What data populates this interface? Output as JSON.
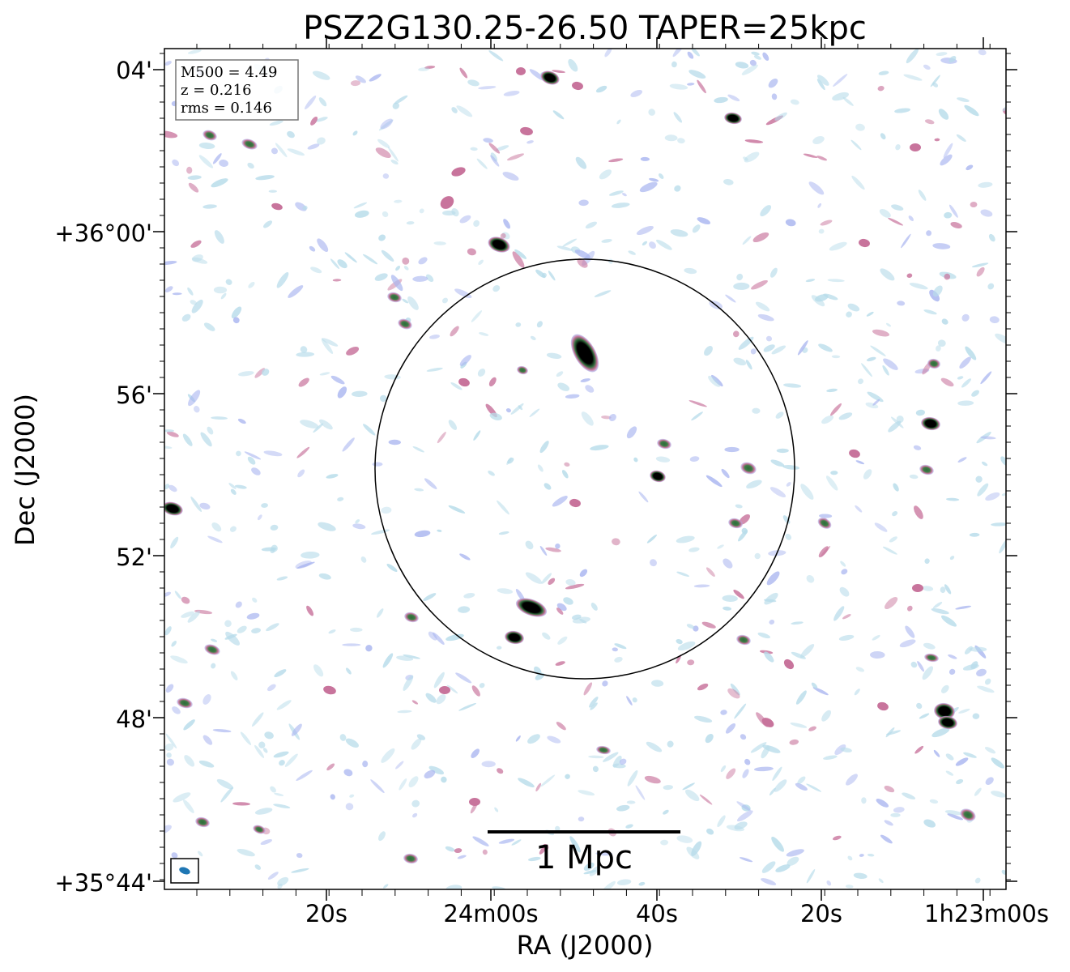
{
  "figure": {
    "title": "PSZ2G130.25-26.50 TAPER=25kpc",
    "xlabel": "RA (J2000)",
    "ylabel": "Dec (J2000)",
    "x_tick_labels": [
      "20s",
      "24m00s",
      "40s",
      "20s",
      "1h23m00s"
    ],
    "y_tick_labels": [
      "04'",
      "+36°00'",
      "56'",
      "52'",
      "48'",
      "+35°44'"
    ],
    "info_box": [
      "M500 = 4.49",
      "z = 0.216",
      "rms = 0.146"
    ],
    "scale_bar_label": "1 Mpc",
    "colors": {
      "faint_emission": "#b8dcea",
      "low_emission": "#aab6f0",
      "mid_emission": "#c8749c",
      "high_emission": "#2e6b3a",
      "peak_emission": "#000000",
      "beam": "#1f77b4",
      "circle": "#000000"
    }
  }
}
